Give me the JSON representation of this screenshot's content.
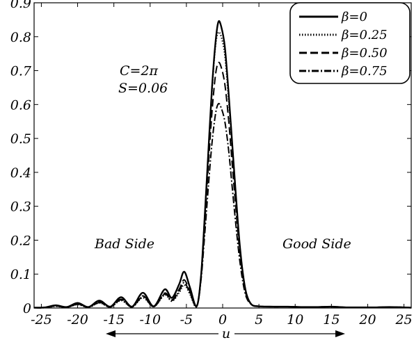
{
  "chart_data": {
    "type": "line",
    "xlabel": "u",
    "ylabel": "",
    "xlim": [
      -26,
      26
    ],
    "ylim": [
      0,
      0.9
    ],
    "xticks": [
      -25,
      -20,
      -15,
      -10,
      -5,
      0,
      5,
      10,
      15,
      20,
      25
    ],
    "xtick_labels": [
      "-25",
      "-20",
      "-15",
      "-10",
      "-5",
      "0",
      "5",
      "10",
      "15",
      "20",
      "25"
    ],
    "yticks": [
      0,
      0.1,
      0.2,
      0.3,
      0.4,
      0.5,
      0.6,
      0.7,
      0.8,
      0.9
    ],
    "ytick_labels": [
      "0",
      "0.1",
      "0.2",
      "0.3",
      "0.4",
      "0.5",
      "0.6",
      "0.7",
      "0.8",
      "0.9"
    ],
    "grid": false,
    "legend": {
      "position": "top-right"
    },
    "annotations": {
      "c_value": "C=2π",
      "s_value": "S=0.06",
      "bad_side": "Bad Side",
      "good_side": "Good Side"
    },
    "x": [
      -26,
      -24.5,
      -23,
      -21.5,
      -20,
      -18.5,
      -17,
      -15.5,
      -14,
      -12.5,
      -11,
      -9.5,
      -8,
      -7,
      -6,
      -5.3,
      -4.5,
      -3.6,
      -3,
      -2.5,
      -2,
      -1.5,
      -1,
      -0.6,
      -0.2,
      0.3,
      0.8,
      1.3,
      1.8,
      2.3,
      2.8,
      3.3,
      4,
      5,
      7,
      9,
      11,
      13,
      15,
      17,
      19,
      21,
      23,
      25,
      26
    ],
    "series": [
      {
        "name": "β=0",
        "style": "solid",
        "values": [
          0.001,
          0.002,
          0.008,
          0.003,
          0.015,
          0.003,
          0.022,
          0.004,
          0.032,
          0.004,
          0.045,
          0.005,
          0.055,
          0.03,
          0.07,
          0.107,
          0.06,
          0.005,
          0.09,
          0.26,
          0.45,
          0.64,
          0.78,
          0.843,
          0.83,
          0.77,
          0.64,
          0.49,
          0.34,
          0.2,
          0.1,
          0.04,
          0.01,
          0.005,
          0.004,
          0.004,
          0.003,
          0.003,
          0.004,
          0.002,
          0.002,
          0.002,
          0.003,
          0.002,
          0.001
        ]
      },
      {
        "name": "β=0.25",
        "style": "dotted",
        "values": [
          0.001,
          0.001,
          0.005,
          0.002,
          0.01,
          0.002,
          0.015,
          0.003,
          0.022,
          0.003,
          0.03,
          0.004,
          0.038,
          0.02,
          0.045,
          0.068,
          0.04,
          0.004,
          0.09,
          0.26,
          0.44,
          0.63,
          0.77,
          0.812,
          0.8,
          0.745,
          0.62,
          0.48,
          0.33,
          0.195,
          0.1,
          0.04,
          0.01,
          0.005,
          0.004,
          0.004,
          0.003,
          0.003,
          0.004,
          0.002,
          0.002,
          0.002,
          0.003,
          0.002,
          0.001
        ]
      },
      {
        "name": "β=0.50",
        "style": "dashed",
        "values": [
          0.001,
          0.001,
          0.006,
          0.002,
          0.012,
          0.003,
          0.018,
          0.003,
          0.026,
          0.003,
          0.036,
          0.004,
          0.044,
          0.024,
          0.055,
          0.083,
          0.048,
          0.004,
          0.085,
          0.24,
          0.41,
          0.57,
          0.685,
          0.723,
          0.71,
          0.66,
          0.56,
          0.43,
          0.3,
          0.18,
          0.09,
          0.035,
          0.01,
          0.005,
          0.004,
          0.004,
          0.003,
          0.003,
          0.004,
          0.002,
          0.002,
          0.002,
          0.003,
          0.002,
          0.001
        ]
      },
      {
        "name": "β=0.75",
        "style": "dashdot",
        "values": [
          0.001,
          0.001,
          0.006,
          0.002,
          0.011,
          0.002,
          0.016,
          0.003,
          0.024,
          0.003,
          0.033,
          0.004,
          0.041,
          0.022,
          0.05,
          0.075,
          0.044,
          0.004,
          0.08,
          0.21,
          0.35,
          0.48,
          0.57,
          0.602,
          0.59,
          0.55,
          0.47,
          0.36,
          0.25,
          0.15,
          0.075,
          0.03,
          0.01,
          0.005,
          0.004,
          0.004,
          0.003,
          0.003,
          0.004,
          0.002,
          0.002,
          0.002,
          0.003,
          0.002,
          0.001
        ]
      }
    ]
  }
}
